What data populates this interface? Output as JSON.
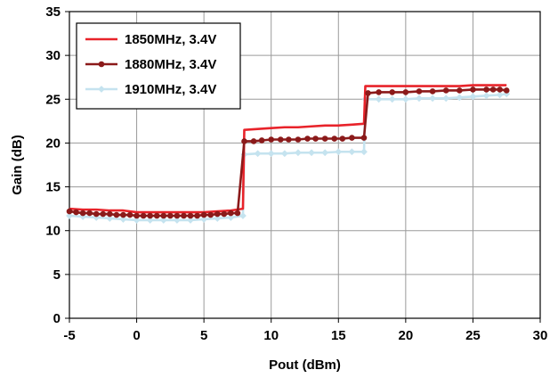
{
  "chart_data": {
    "type": "line",
    "xlabel": "Pout (dBm)",
    "ylabel": "Gain (dB)",
    "xlim": [
      -5,
      30
    ],
    "ylim": [
      0,
      35
    ],
    "xticks": [
      -5,
      0,
      5,
      10,
      15,
      20,
      25,
      30
    ],
    "yticks": [
      0,
      5,
      10,
      15,
      20,
      25,
      30,
      35
    ],
    "grid": true,
    "legend_position": "top-left",
    "series": [
      {
        "name": "1850MHz, 3.4V",
        "color": "#e8232a",
        "marker": "none",
        "x": [
          -5,
          -4,
          -3,
          -2,
          -1,
          0,
          1,
          2,
          3,
          4,
          5,
          6,
          7,
          7.9,
          8,
          9,
          10,
          11,
          12,
          13,
          14,
          15,
          16,
          16.9,
          17,
          18,
          19,
          20,
          21,
          22,
          23,
          24,
          25,
          26,
          27,
          27.5
        ],
        "y": [
          12.5,
          12.4,
          12.4,
          12.3,
          12.3,
          12.1,
          12.1,
          12.1,
          12.1,
          12.1,
          12.1,
          12.2,
          12.3,
          12.5,
          21.5,
          21.6,
          21.7,
          21.8,
          21.8,
          21.9,
          22.0,
          22.0,
          22.1,
          22.2,
          26.5,
          26.5,
          26.5,
          26.5,
          26.5,
          26.5,
          26.5,
          26.5,
          26.6,
          26.6,
          26.6,
          26.6
        ]
      },
      {
        "name": "1880MHz, 3.4V",
        "color": "#8b1a1a",
        "marker": "circle",
        "x": [
          -5,
          -4.5,
          -4,
          -3.5,
          -3,
          -2.5,
          -2,
          -1.5,
          -1,
          -0.5,
          0,
          0.5,
          1,
          1.5,
          2,
          2.5,
          3,
          3.5,
          4,
          4.5,
          5,
          5.5,
          6,
          6.5,
          7,
          7.5,
          8,
          8.7,
          9.3,
          10,
          10.7,
          11.3,
          12,
          12.7,
          13.3,
          14,
          14.7,
          15.3,
          16,
          16.9,
          17.2,
          18,
          19,
          20,
          21,
          22,
          23,
          24,
          25,
          26,
          26.5,
          27,
          27.5
        ],
        "y": [
          12.2,
          12.1,
          12.0,
          12.0,
          11.9,
          11.9,
          11.9,
          11.8,
          11.8,
          11.8,
          11.7,
          11.7,
          11.7,
          11.7,
          11.7,
          11.7,
          11.7,
          11.7,
          11.7,
          11.7,
          11.8,
          11.8,
          11.9,
          11.9,
          12.0,
          12.0,
          20.2,
          20.2,
          20.3,
          20.4,
          20.4,
          20.4,
          20.4,
          20.5,
          20.5,
          20.5,
          20.5,
          20.5,
          20.6,
          20.6,
          25.7,
          25.8,
          25.8,
          25.8,
          25.9,
          25.9,
          26.0,
          26.0,
          26.1,
          26.1,
          26.1,
          26.1,
          26.0
        ]
      },
      {
        "name": "1910MHz, 3.4V",
        "color": "#c5e3ef",
        "marker": "diamond",
        "x": [
          -5,
          -4,
          -3,
          -2,
          -1,
          0,
          1,
          2,
          3,
          4,
          5,
          6,
          7,
          7.9,
          8,
          9,
          10,
          11,
          12,
          13,
          14,
          15,
          16,
          16.9,
          17,
          18,
          19,
          20,
          21,
          22,
          23,
          24,
          25,
          26,
          27,
          27.5
        ],
        "y": [
          11.7,
          11.6,
          11.5,
          11.4,
          11.3,
          11.2,
          11.2,
          11.2,
          11.2,
          11.2,
          11.3,
          11.4,
          11.5,
          11.7,
          18.7,
          18.8,
          18.8,
          18.8,
          18.9,
          18.9,
          18.9,
          19.0,
          19.0,
          19.0,
          25.0,
          25.0,
          25.0,
          25.0,
          25.1,
          25.1,
          25.1,
          25.2,
          25.3,
          25.4,
          25.5,
          25.6
        ]
      }
    ]
  }
}
